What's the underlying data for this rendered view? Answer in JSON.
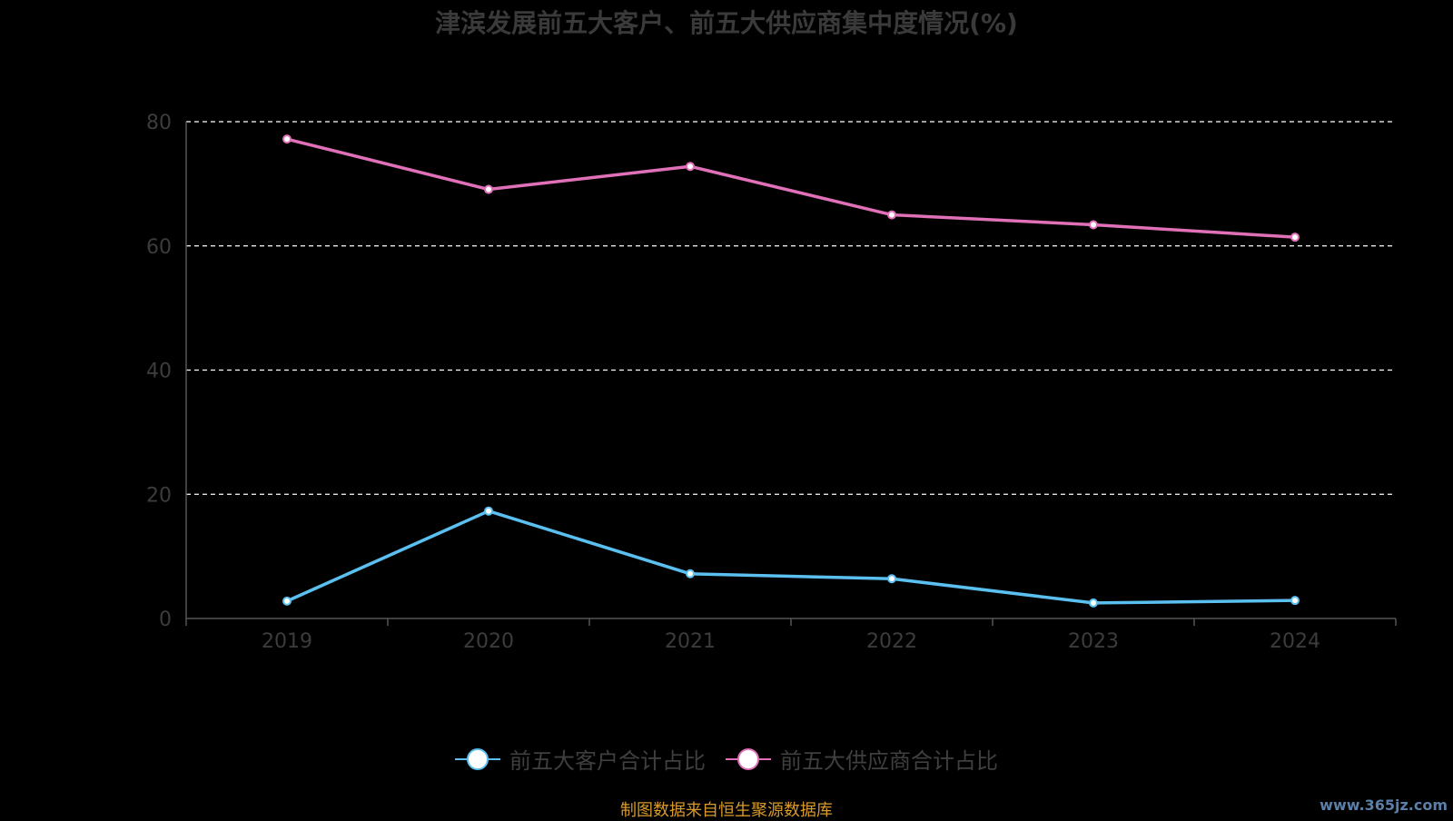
{
  "chart_data": {
    "type": "line",
    "title": "津滨发展前五大客户、前五大供应商集中度情况(%)",
    "categories": [
      "2019",
      "2020",
      "2021",
      "2022",
      "2023",
      "2024"
    ],
    "ylim": [
      0,
      80
    ],
    "yticks": [
      0,
      20,
      40,
      60,
      80
    ],
    "grid": true,
    "legend_position": "bottom",
    "series": [
      {
        "name": "前五大客户合计占比",
        "color": "#5bc0f0",
        "values": [
          2.8,
          17.3,
          7.2,
          6.4,
          2.5,
          2.9
        ]
      },
      {
        "name": "前五大供应商合计占比",
        "color": "#e070b8",
        "values": [
          77.2,
          69.1,
          72.8,
          65.0,
          63.4,
          61.4
        ]
      }
    ]
  },
  "source_text": "制图数据来自恒生聚源数据库",
  "watermark": "www.365jz.com"
}
